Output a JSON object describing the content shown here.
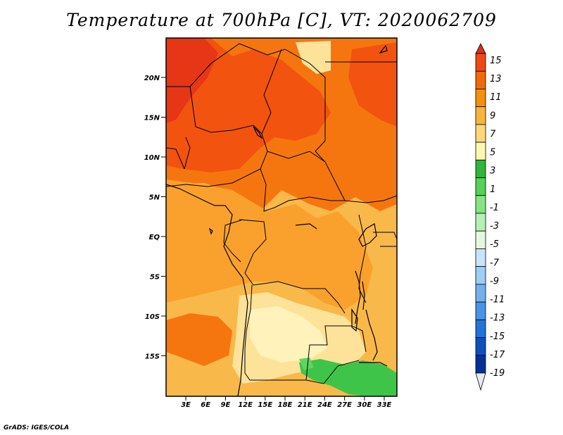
{
  "title": "Temperature at 700hPa [C], VT: 2020062709",
  "credit": "GrADS: IGES/COLA",
  "axes": {
    "lat_labels": [
      "20N",
      "15N",
      "10N",
      "5N",
      "EQ",
      "5S",
      "10S",
      "15S"
    ],
    "lon_labels": [
      "3E",
      "6E",
      "9E",
      "12E",
      "15E",
      "18E",
      "21E",
      "24E",
      "27E",
      "30E",
      "33E"
    ]
  },
  "colorbar": {
    "labels": [
      "15",
      "13",
      "11",
      "9",
      "7",
      "5",
      "3",
      "1",
      "-1",
      "-3",
      "-5",
      "-7",
      "-9",
      "-11",
      "-13",
      "-15",
      "-17",
      "-19"
    ],
    "colors": [
      "#d7301f",
      "#ec4a14",
      "#f06a0c",
      "#f4900c",
      "#f8b53c",
      "#fdd87a",
      "#fff6b4",
      "#2fb43c",
      "#57cf58",
      "#86e384",
      "#b6f0b4",
      "#e4f8e0",
      "#c9e4fa",
      "#9fcdf4",
      "#74b1ec",
      "#4a94e4",
      "#2473d8",
      "#0d4fbe",
      "#062f96",
      "#07146e"
    ]
  },
  "fields": {
    "hot": "#f2530f",
    "very_hot": "#e63616",
    "warm": "#f5760e",
    "mid": "#f9a12c",
    "mild": "#f9b84a",
    "pale": "#fde29a",
    "cream": "#fff2ba",
    "green": "#3fc44a",
    "green_light": "#60d462"
  }
}
